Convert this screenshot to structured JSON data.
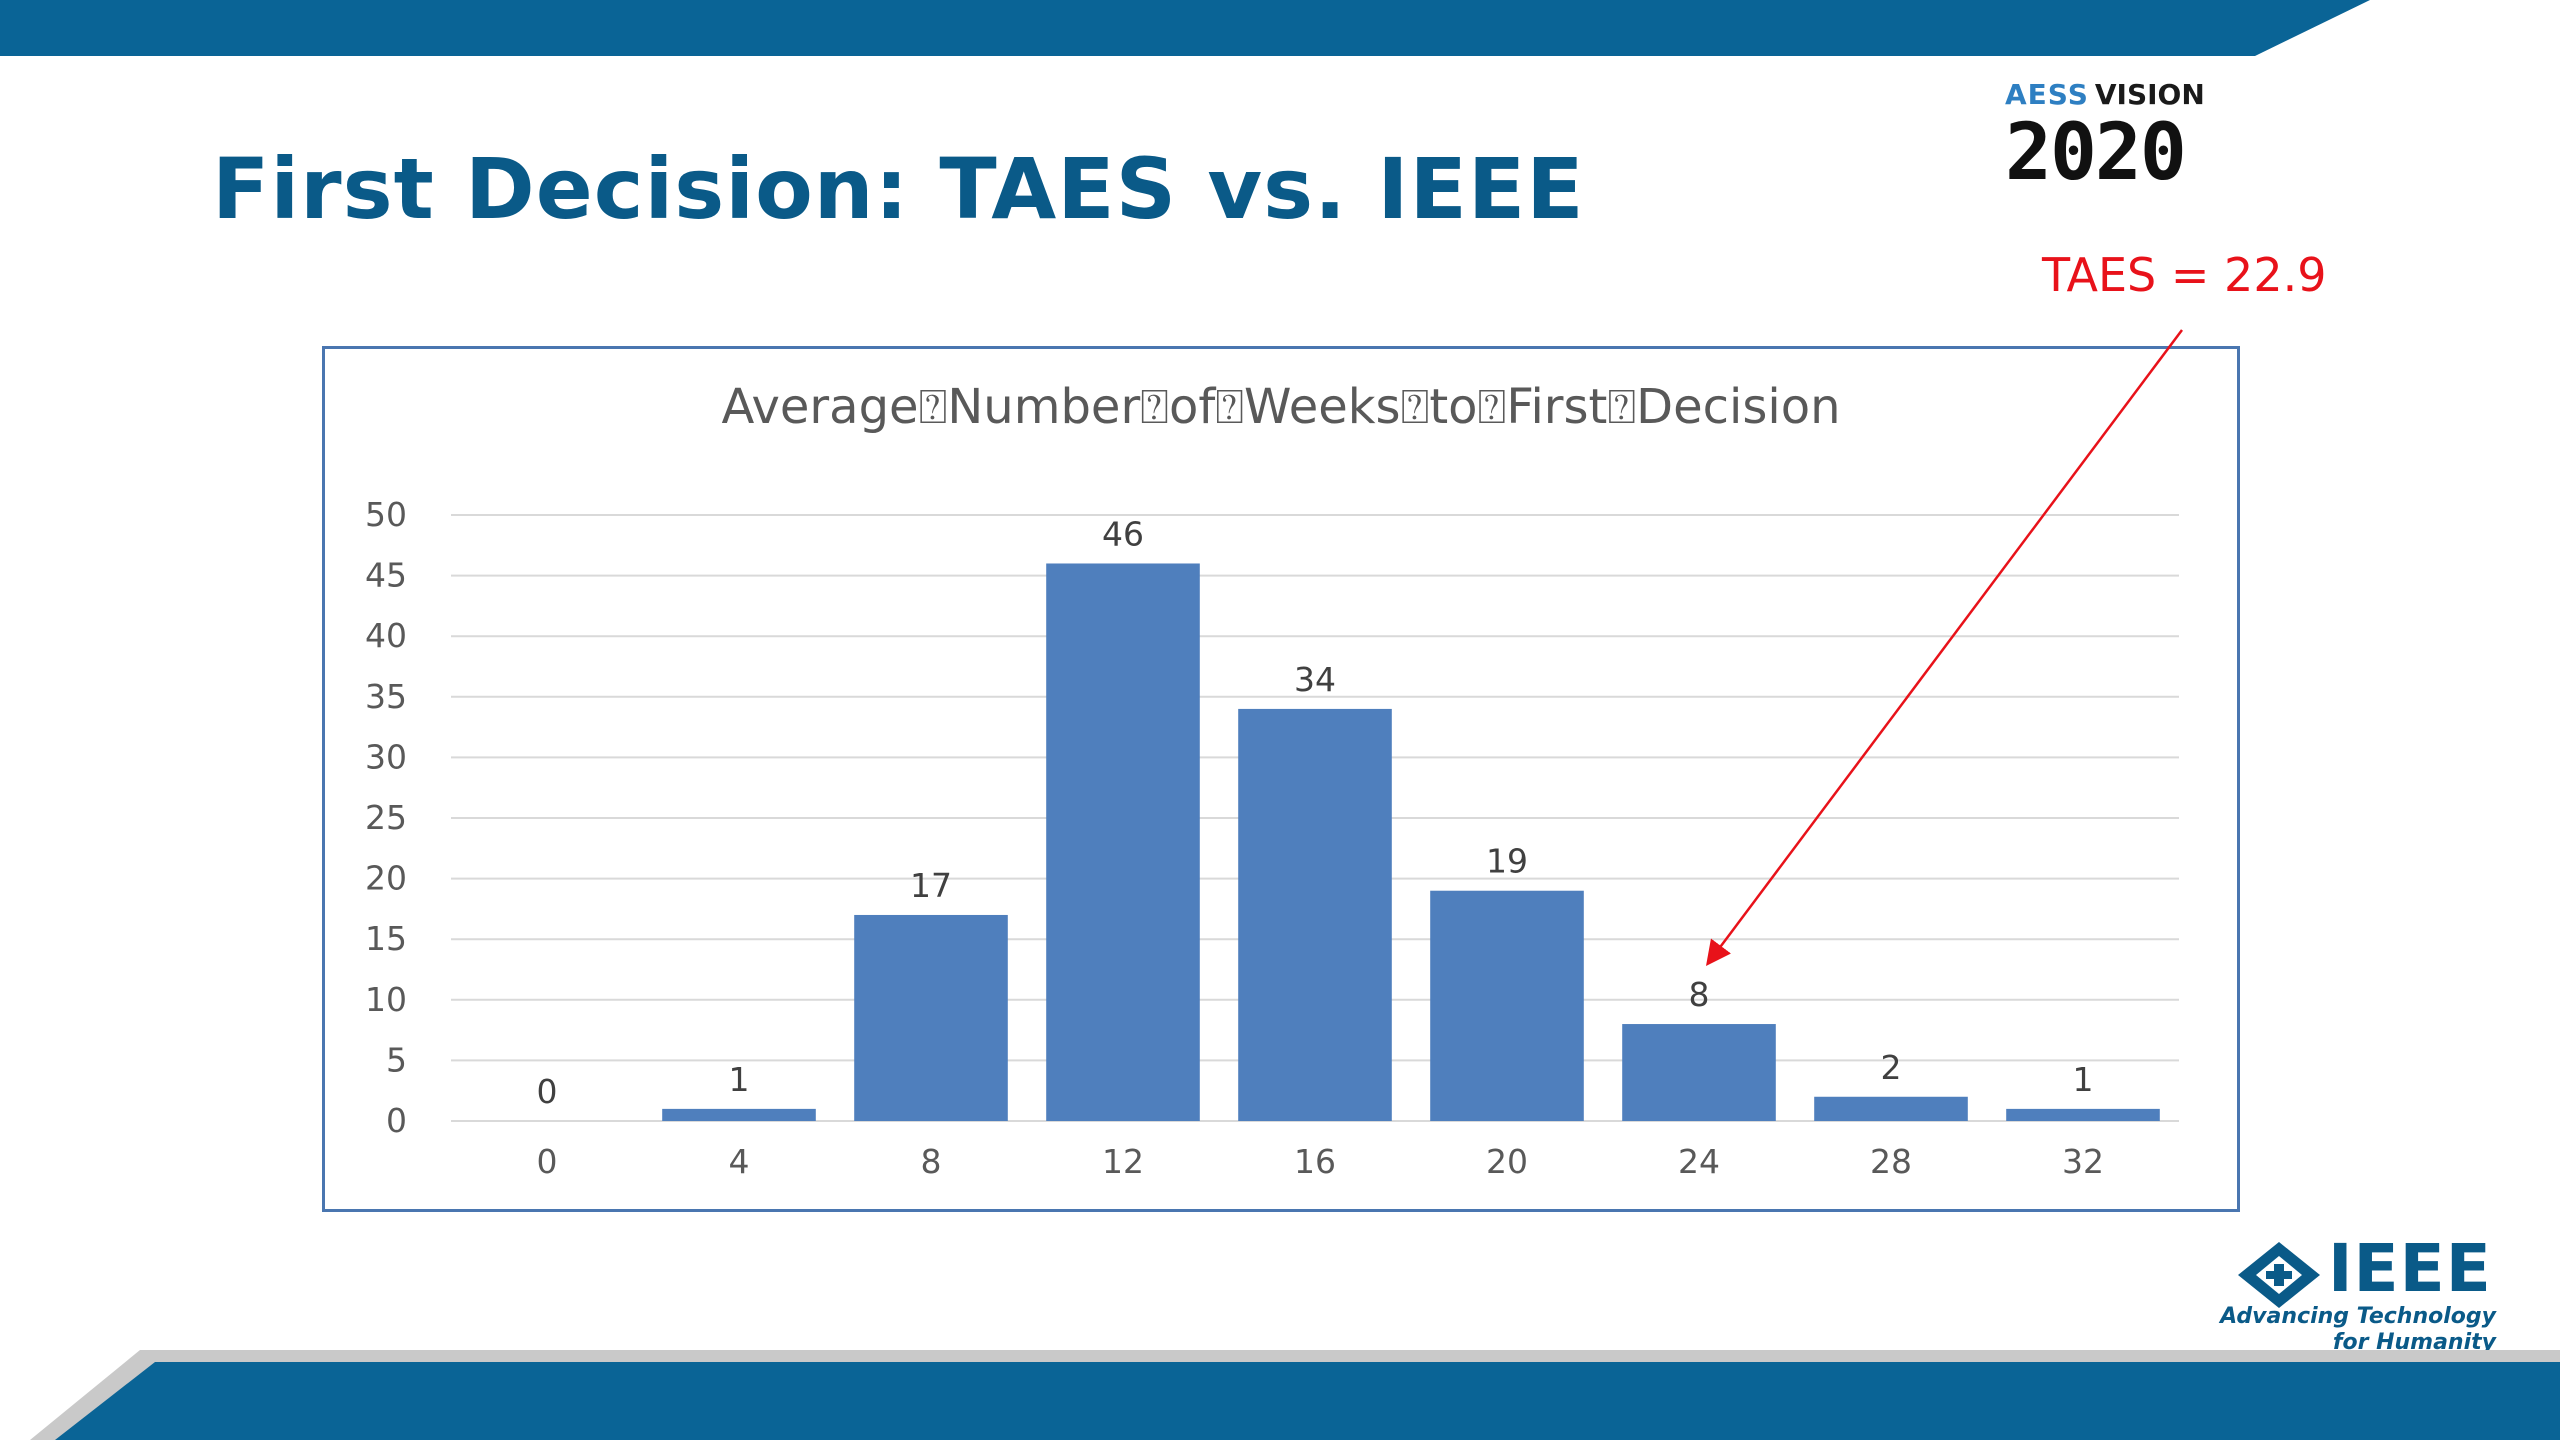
{
  "slide": {
    "title": "First Decision: TAES vs. IEEE",
    "colors": {
      "band": "#0a6496",
      "title": "#0a5a88",
      "accent": "#e8121a"
    }
  },
  "aess_logo": {
    "letters": "AESS",
    "word": "VISION",
    "year": "2020"
  },
  "ieee_logo": {
    "icon": "ieee-diamond-icon",
    "word": "IEEE",
    "tagline_line1": "Advancing Technology",
    "tagline_line2": "for Humanity"
  },
  "callout": {
    "label": "TAES = 22.9",
    "points_to_category": "24"
  },
  "chart_data": {
    "type": "bar",
    "title": "Average\u0000Number\u0000of\u0000Weeks\u0000to\u0000First\u0000Decision",
    "title_display": "Average⍰Number⍰of⍰Weeks⍰to⍰First⍰Decision",
    "categories": [
      "0",
      "4",
      "8",
      "12",
      "16",
      "20",
      "24",
      "28",
      "32"
    ],
    "values": [
      0,
      1,
      17,
      46,
      34,
      19,
      8,
      2,
      1
    ],
    "data_labels": [
      "0",
      "1",
      "17",
      "46",
      "34",
      "19",
      "8",
      "2",
      "1"
    ],
    "xlabel": "",
    "ylabel": "",
    "ylim": [
      0,
      50
    ],
    "yticks": [
      "0",
      "5",
      "10",
      "15",
      "20",
      "25",
      "30",
      "35",
      "40",
      "45",
      "50"
    ],
    "grid": true,
    "legend": "none",
    "bar_color": "#4f7fbd"
  }
}
